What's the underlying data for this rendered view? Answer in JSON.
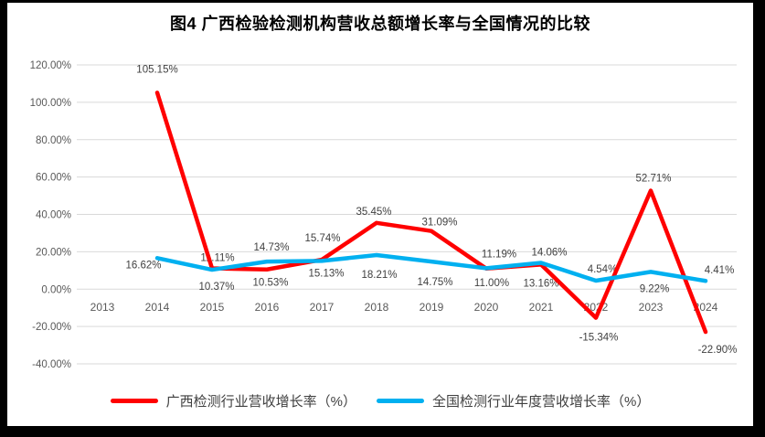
{
  "title": "图4 广西检验检测机构营收总额增长率与全国情况的比较",
  "chart_data": {
    "type": "line",
    "title": "图4 广西检验检测机构营收总额增长率与全国情况的比较",
    "categories": [
      "2013",
      "2014",
      "2015",
      "2016",
      "2017",
      "2018",
      "2019",
      "2020",
      "2021",
      "2022",
      "2023",
      "2024"
    ],
    "series": [
      {
        "name": "广西检测行业营收增长率（%）",
        "color": "#FF0000",
        "values": [
          null,
          105.15,
          11.11,
          10.53,
          15.74,
          35.45,
          31.09,
          11.0,
          13.16,
          -15.34,
          52.71,
          -22.9
        ],
        "label_offsets": [
          null,
          [
            0,
            -26
          ],
          [
            6,
            -12
          ],
          [
            4,
            14
          ],
          [
            1,
            -24
          ],
          [
            -3,
            -13
          ],
          [
            9,
            -10
          ],
          [
            6,
            15
          ],
          [
            0,
            20
          ],
          [
            3,
            21
          ],
          [
            3,
            -14
          ],
          [
            13,
            19
          ]
        ]
      },
      {
        "name": "全国检测行业年度营收增长率（%）",
        "color": "#00B0F0",
        "values": [
          null,
          16.62,
          10.37,
          14.73,
          15.13,
          18.21,
          14.75,
          11.19,
          14.06,
          4.54,
          9.22,
          4.41
        ],
        "label_offsets": [
          null,
          [
            -15,
            7
          ],
          [
            5,
            18
          ],
          [
            5,
            -16
          ],
          [
            5,
            13
          ],
          [
            3,
            21
          ],
          [
            4,
            22
          ],
          [
            14,
            -16
          ],
          [
            9,
            -12
          ],
          [
            7,
            -13
          ],
          [
            4,
            18
          ],
          [
            15,
            -12
          ]
        ]
      }
    ],
    "ylim": [
      -40,
      120
    ],
    "ytick_step": 20,
    "ytick_labels": [
      "120.00%",
      "100.00%",
      "80.00%",
      "60.00%",
      "40.00%",
      "20.00%",
      "0.00%",
      "-20.00%",
      "-40.00%"
    ],
    "grid": true,
    "legend_position": "bottom",
    "data_labels": true
  },
  "legend": {
    "items": [
      {
        "label": "广西检测行业营收增长率（%）",
        "color": "#FF0000"
      },
      {
        "label": "全国检测行业年度营收增长率（%）",
        "color": "#00B0F0"
      }
    ]
  },
  "colors": {
    "frame": "#000000",
    "background": "#FFFFFF",
    "gridline": "#D9D9D9",
    "axis_text": "#595959",
    "data_label_text": "#404040"
  }
}
